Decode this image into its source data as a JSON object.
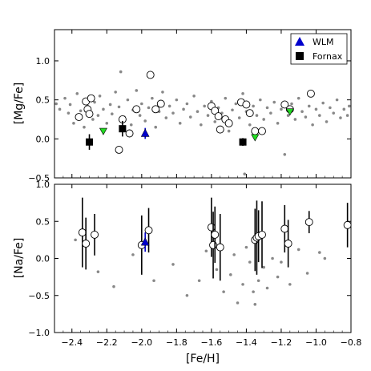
{
  "chart_data": [
    {
      "type": "scatter",
      "panel": "top",
      "ylabel": "[Mg/Fe]",
      "xlim": [
        -2.5,
        -0.8
      ],
      "ylim": [
        -0.5,
        1.4
      ],
      "yticks": [
        -0.5,
        0.0,
        0.5,
        1.0
      ],
      "ytick_labels": [
        "−0.5",
        "0.0",
        "0.5",
        "1.0"
      ],
      "legend": {
        "position": "top-right",
        "entries": [
          {
            "label": "WLM",
            "marker": "triangle-up",
            "color": "#0000cc"
          },
          {
            "label": "Fornax",
            "marker": "square",
            "color": "#000000"
          }
        ]
      },
      "series": [
        {
          "name": "WLM",
          "marker": "triangle-up",
          "color": "#0000cc",
          "points": [
            {
              "x": -1.98,
              "y": 0.07,
              "err": 0.07
            }
          ]
        },
        {
          "name": "Fornax",
          "marker": "square",
          "color": "#000000",
          "points": [
            {
              "x": -2.3,
              "y": -0.04,
              "err": 0.1
            },
            {
              "x": -2.11,
              "y": 0.13,
              "err": 0.1
            },
            {
              "x": -1.42,
              "y": -0.04,
              "err": 0.05
            }
          ]
        },
        {
          "marker": "triangle-down",
          "color": "#22dd22",
          "points": [
            {
              "x": -2.22,
              "y": 0.1
            },
            {
              "x": -1.35,
              "y": 0.02
            },
            {
              "x": -1.15,
              "y": 0.35
            }
          ]
        },
        {
          "marker": "open-circle",
          "color": "#000000",
          "points": [
            {
              "x": -2.36,
              "y": 0.28
            },
            {
              "x": -2.32,
              "y": 0.48
            },
            {
              "x": -2.31,
              "y": 0.38
            },
            {
              "x": -2.3,
              "y": 0.32
            },
            {
              "x": -2.29,
              "y": 0.52
            },
            {
              "x": -2.13,
              "y": -0.14
            },
            {
              "x": -2.11,
              "y": 0.25
            },
            {
              "x": -2.07,
              "y": 0.07
            },
            {
              "x": -2.03,
              "y": 0.38
            },
            {
              "x": -1.95,
              "y": 0.82
            },
            {
              "x": -1.92,
              "y": 0.38
            },
            {
              "x": -1.89,
              "y": 0.45
            },
            {
              "x": -1.6,
              "y": 0.42
            },
            {
              "x": -1.58,
              "y": 0.36
            },
            {
              "x": -1.56,
              "y": 0.29
            },
            {
              "x": -1.55,
              "y": 0.12
            },
            {
              "x": -1.52,
              "y": 0.25
            },
            {
              "x": -1.5,
              "y": 0.2
            },
            {
              "x": -1.43,
              "y": 0.47
            },
            {
              "x": -1.4,
              "y": 0.44
            },
            {
              "x": -1.38,
              "y": 0.33
            },
            {
              "x": -1.35,
              "y": 0.1
            },
            {
              "x": -1.31,
              "y": 0.1
            },
            {
              "x": -1.18,
              "y": 0.44
            },
            {
              "x": -1.15,
              "y": 0.38
            },
            {
              "x": -1.03,
              "y": 0.58
            }
          ]
        },
        {
          "marker": "small-dot",
          "color": "#888888",
          "points": [
            {
              "x": -2.49,
              "y": 0.45
            },
            {
              "x": -2.47,
              "y": 0.38
            },
            {
              "x": -2.44,
              "y": 0.52
            },
            {
              "x": -2.42,
              "y": 0.33
            },
            {
              "x": -2.41,
              "y": 0.44
            },
            {
              "x": -2.39,
              "y": 0.2
            },
            {
              "x": -2.37,
              "y": 0.58
            },
            {
              "x": -2.35,
              "y": 0.36
            },
            {
              "x": -2.33,
              "y": 0.15
            },
            {
              "x": -2.31,
              "y": 0.42
            },
            {
              "x": -2.28,
              "y": 0.25
            },
            {
              "x": -2.27,
              "y": 0.47
            },
            {
              "x": -2.25,
              "y": 0.3
            },
            {
              "x": -2.24,
              "y": 0.55
            },
            {
              "x": -2.22,
              "y": 0.38
            },
            {
              "x": -2.2,
              "y": 0.2
            },
            {
              "x": -2.18,
              "y": 0.44
            },
            {
              "x": -2.17,
              "y": 0.32
            },
            {
              "x": -2.15,
              "y": 0.6
            },
            {
              "x": -2.13,
              "y": 0.41
            },
            {
              "x": -2.12,
              "y": 0.86
            },
            {
              "x": -2.1,
              "y": 0.28
            },
            {
              "x": -2.08,
              "y": 0.5
            },
            {
              "x": -2.06,
              "y": 0.18
            },
            {
              "x": -2.05,
              "y": 0.37
            },
            {
              "x": -2.03,
              "y": 0.62
            },
            {
              "x": -2.01,
              "y": 0.3
            },
            {
              "x": -2.0,
              "y": 0.45
            },
            {
              "x": -1.98,
              "y": 0.23
            },
            {
              "x": -1.96,
              "y": 0.4
            },
            {
              "x": -1.94,
              "y": 0.52
            },
            {
              "x": -1.92,
              "y": 0.15
            },
            {
              "x": -1.9,
              "y": 0.35
            },
            {
              "x": -1.88,
              "y": 0.6
            },
            {
              "x": -1.86,
              "y": 0.27
            },
            {
              "x": -1.84,
              "y": 0.42
            },
            {
              "x": -1.82,
              "y": 0.33
            },
            {
              "x": -1.8,
              "y": 0.5
            },
            {
              "x": -1.78,
              "y": 0.2
            },
            {
              "x": -1.76,
              "y": 0.38
            },
            {
              "x": -1.74,
              "y": 0.45
            },
            {
              "x": -1.72,
              "y": 0.28
            },
            {
              "x": -1.7,
              "y": 0.55
            },
            {
              "x": -1.68,
              "y": 0.35
            },
            {
              "x": -1.66,
              "y": 0.18
            },
            {
              "x": -1.64,
              "y": 0.42
            },
            {
              "x": -1.62,
              "y": 0.3
            },
            {
              "x": -1.6,
              "y": 0.48
            },
            {
              "x": -1.58,
              "y": 0.22
            },
            {
              "x": -1.56,
              "y": 0.4
            },
            {
              "x": -1.54,
              "y": 0.33
            },
            {
              "x": -1.52,
              "y": 0.52
            },
            {
              "x": -1.5,
              "y": 0.1
            },
            {
              "x": -1.48,
              "y": 0.37
            },
            {
              "x": -1.46,
              "y": 0.45
            },
            {
              "x": -1.44,
              "y": 0.27
            },
            {
              "x": -1.42,
              "y": 0.58
            },
            {
              "x": -1.41,
              "y": -0.45
            },
            {
              "x": -1.4,
              "y": 0.35
            },
            {
              "x": -1.38,
              "y": 0.18
            },
            {
              "x": -1.36,
              "y": 0.42
            },
            {
              "x": -1.34,
              "y": 0.3
            },
            {
              "x": -1.32,
              "y": 0.5
            },
            {
              "x": -1.3,
              "y": 0.25
            },
            {
              "x": -1.28,
              "y": 0.4
            },
            {
              "x": -1.26,
              "y": 0.33
            },
            {
              "x": -1.24,
              "y": 0.47
            },
            {
              "x": -1.22,
              "y": 0.2
            },
            {
              "x": -1.2,
              "y": 0.38
            },
            {
              "x": -1.18,
              "y": -0.2
            },
            {
              "x": -1.16,
              "y": 0.3
            },
            {
              "x": -1.14,
              "y": 0.45
            },
            {
              "x": -1.12,
              "y": 0.25
            },
            {
              "x": -1.1,
              "y": 0.52
            },
            {
              "x": -1.08,
              "y": 0.35
            },
            {
              "x": -1.06,
              "y": 0.28
            },
            {
              "x": -1.04,
              "y": 0.42
            },
            {
              "x": -1.02,
              "y": 0.18
            },
            {
              "x": -1.0,
              "y": 0.38
            },
            {
              "x": -0.98,
              "y": 0.3
            },
            {
              "x": -0.96,
              "y": 0.46
            },
            {
              "x": -0.94,
              "y": 0.22
            },
            {
              "x": -0.92,
              "y": 0.4
            },
            {
              "x": -0.9,
              "y": 0.33
            },
            {
              "x": -0.88,
              "y": 0.5
            },
            {
              "x": -0.86,
              "y": 0.27
            },
            {
              "x": -0.84,
              "y": 0.38
            },
            {
              "x": -0.82,
              "y": 0.3
            },
            {
              "x": -0.81,
              "y": 0.42
            }
          ]
        }
      ]
    },
    {
      "type": "scatter",
      "panel": "bottom",
      "ylabel": "[Na/Fe]",
      "xlabel": "[Fe/H]",
      "xlim": [
        -2.5,
        -0.8
      ],
      "ylim": [
        -1.0,
        1.0
      ],
      "xticks": [
        -2.4,
        -2.2,
        -2.0,
        -1.8,
        -1.6,
        -1.4,
        -1.2,
        -1.0,
        -0.8
      ],
      "xtick_labels": [
        "−2.4",
        "−2.2",
        "−2.0",
        "−1.8",
        "−1.6",
        "−1.4",
        "−1.2",
        "−1.0",
        "−0.8"
      ],
      "yticks": [
        -1.0,
        -0.5,
        0.0,
        0.5,
        1.0
      ],
      "ytick_labels": [
        "−1.0",
        "−0.5",
        "0.0",
        "0.5",
        "1.0"
      ],
      "series": [
        {
          "name": "WLM",
          "marker": "triangle-up",
          "color": "#0000cc",
          "points": [
            {
              "x": -1.98,
              "y": 0.22,
              "err": 0.13
            }
          ]
        },
        {
          "marker": "open-circle-errorbar",
          "color": "#000000",
          "points": [
            {
              "x": -2.34,
              "y": 0.35,
              "err": 0.47
            },
            {
              "x": -2.32,
              "y": 0.2,
              "err": 0.35
            },
            {
              "x": -2.27,
              "y": 0.32,
              "err": 0.28
            },
            {
              "x": -2.0,
              "y": 0.18,
              "err": 0.4
            },
            {
              "x": -1.96,
              "y": 0.38,
              "err": 0.3
            },
            {
              "x": -1.6,
              "y": 0.42,
              "err": 0.4
            },
            {
              "x": -1.59,
              "y": 0.18,
              "err": 0.45
            },
            {
              "x": -1.58,
              "y": 0.32,
              "err": 0.38
            },
            {
              "x": -1.55,
              "y": 0.15,
              "err": 0.45
            },
            {
              "x": -1.35,
              "y": 0.25,
              "err": 0.42
            },
            {
              "x": -1.34,
              "y": 0.28,
              "err": 0.5
            },
            {
              "x": -1.33,
              "y": 0.3,
              "err": 0.35
            },
            {
              "x": -1.31,
              "y": 0.32,
              "err": 0.45
            },
            {
              "x": -1.18,
              "y": 0.4,
              "err": 0.32
            },
            {
              "x": -1.16,
              "y": 0.2,
              "err": 0.32
            },
            {
              "x": -1.04,
              "y": 0.49,
              "err": 0.15
            },
            {
              "x": -0.82,
              "y": 0.45,
              "err": 0.3
            }
          ]
        },
        {
          "marker": "small-dot",
          "color": "#888888",
          "points": [
            {
              "x": -2.38,
              "y": 0.25
            },
            {
              "x": -2.25,
              "y": -0.18
            },
            {
              "x": -2.16,
              "y": -0.38
            },
            {
              "x": -2.05,
              "y": 0.05
            },
            {
              "x": -1.93,
              "y": -0.3
            },
            {
              "x": -1.82,
              "y": -0.08
            },
            {
              "x": -1.74,
              "y": -0.5
            },
            {
              "x": -1.67,
              "y": -0.3
            },
            {
              "x": -1.63,
              "y": 0.1
            },
            {
              "x": -1.57,
              "y": -0.15
            },
            {
              "x": -1.53,
              "y": -0.45
            },
            {
              "x": -1.49,
              "y": -0.22
            },
            {
              "x": -1.47,
              "y": 0.05
            },
            {
              "x": -1.45,
              "y": -0.6
            },
            {
              "x": -1.42,
              "y": -0.35
            },
            {
              "x": -1.4,
              "y": 0.15
            },
            {
              "x": -1.38,
              "y": -0.05
            },
            {
              "x": -1.36,
              "y": -0.45
            },
            {
              "x": -1.35,
              "y": -0.62
            },
            {
              "x": -1.33,
              "y": -0.3
            },
            {
              "x": -1.3,
              "y": -0.12
            },
            {
              "x": -1.28,
              "y": -0.4
            },
            {
              "x": -1.25,
              "y": 0.0
            },
            {
              "x": -1.22,
              "y": -0.25
            },
            {
              "x": -1.2,
              "y": -0.05
            },
            {
              "x": -1.15,
              "y": -0.35
            },
            {
              "x": -1.1,
              "y": 0.12
            },
            {
              "x": -1.05,
              "y": -0.2
            },
            {
              "x": -0.98,
              "y": 0.08
            },
            {
              "x": -0.95,
              "y": 0.0
            }
          ]
        }
      ]
    }
  ],
  "xlabel": "[Fe/H]"
}
